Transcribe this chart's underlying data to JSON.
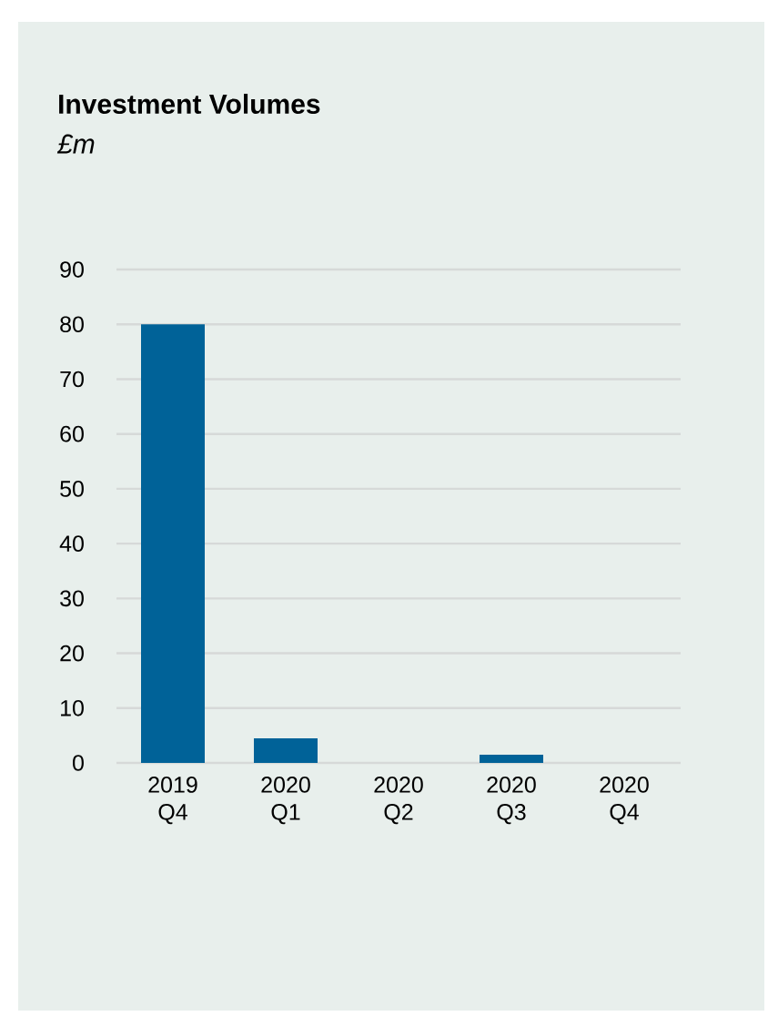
{
  "chart_data": {
    "type": "bar",
    "title": "Investment Volumes",
    "subtitle": "£m",
    "categories": [
      "2019 Q4",
      "2020 Q1",
      "2020 Q2",
      "2020 Q3",
      "2020 Q4"
    ],
    "values": [
      80,
      4.5,
      0,
      1.5,
      0
    ],
    "color": "#006298",
    "ylim": [
      0,
      90
    ],
    "yticks": [
      0,
      10,
      20,
      30,
      40,
      50,
      60,
      70,
      80,
      90
    ],
    "grid": "y"
  }
}
